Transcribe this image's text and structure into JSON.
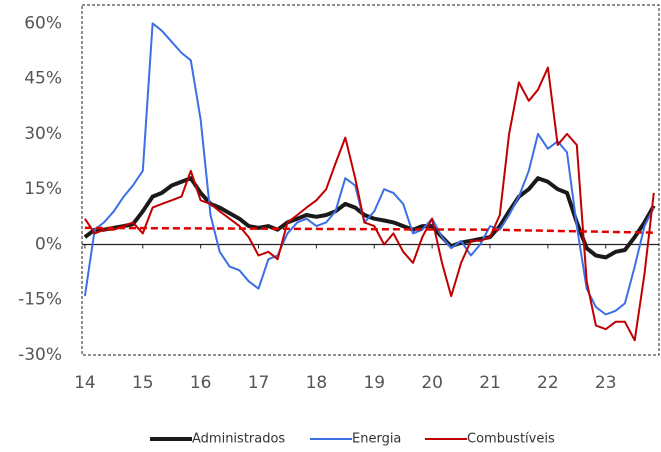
{
  "chart_data": {
    "type": "line",
    "x": [
      14,
      14.17,
      14.33,
      14.5,
      14.67,
      14.83,
      15,
      15.17,
      15.33,
      15.5,
      15.67,
      15.83,
      16,
      16.17,
      16.33,
      16.5,
      16.67,
      16.83,
      17,
      17.17,
      17.33,
      17.5,
      17.67,
      17.83,
      18,
      18.17,
      18.33,
      18.5,
      18.67,
      18.83,
      19,
      19.17,
      19.33,
      19.5,
      19.67,
      19.83,
      20,
      20.17,
      20.33,
      20.5,
      20.67,
      20.83,
      21,
      21.17,
      21.33,
      21.5,
      21.67,
      21.83,
      22,
      22.17,
      22.33,
      22.5,
      22.67,
      22.83,
      23,
      23.17,
      23.33,
      23.5,
      23.67,
      23.83
    ],
    "series": [
      {
        "name": "Administrados",
        "color": "#1a1a1a",
        "width": 4,
        "values": [
          2,
          4,
          4,
          4.5,
          5,
          5.5,
          9,
          13,
          14,
          16,
          17,
          18,
          14,
          11,
          10,
          8.5,
          7,
          5,
          4.5,
          5,
          4,
          6,
          7,
          8,
          7.5,
          8,
          9,
          11,
          10,
          8,
          7,
          6.5,
          6,
          5,
          4,
          5,
          5,
          2,
          -0.5,
          0.5,
          1,
          1.5,
          2,
          5,
          9,
          13,
          15,
          18,
          17,
          15,
          14,
          6,
          -1,
          -3,
          -3.5,
          -2,
          -1.5,
          2,
          6,
          10.5
        ]
      },
      {
        "name": "Energia",
        "color": "#3c6fe6",
        "width": 2,
        "values": [
          -14,
          4,
          6,
          9,
          13,
          16,
          20,
          60,
          58,
          55,
          52,
          50,
          34,
          8,
          -2,
          -6,
          -7,
          -10,
          -12,
          -4,
          -3,
          3,
          6,
          7,
          5,
          6,
          9,
          18,
          16,
          6,
          9,
          15,
          14,
          11,
          3,
          4,
          7,
          2,
          -1,
          1,
          -3,
          0,
          5,
          4,
          8,
          13,
          20,
          30,
          26,
          28,
          25,
          5,
          -12,
          -17,
          -19,
          -18,
          -16,
          -6,
          5,
          10
        ]
      },
      {
        "name": "Combustíveis",
        "color": "#c00000",
        "width": 2,
        "values": [
          7,
          3,
          4,
          4,
          5,
          6,
          3,
          10,
          11,
          12,
          13,
          20,
          12,
          11,
          9,
          7,
          5,
          2,
          -3,
          -2,
          -4,
          6,
          8,
          10,
          12,
          15,
          22,
          29,
          18,
          6,
          5,
          0,
          3,
          -2,
          -5,
          2,
          7,
          -5,
          -14,
          -5,
          1,
          1,
          2,
          8,
          30,
          44,
          39,
          42,
          48,
          27,
          30,
          27,
          -10,
          -22,
          -23,
          -21,
          -21,
          -26,
          -8,
          14
        ]
      },
      {
        "color": "#e00000",
        "width": 2.5,
        "dash": true,
        "x": [
          14,
          21,
          23.83
        ],
        "values": [
          4.5,
          4,
          3.2
        ]
      }
    ],
    "xlim": [
      13.95,
      23.92
    ],
    "xticks": [
      14,
      15,
      16,
      17,
      18,
      19,
      20,
      21,
      22,
      23
    ],
    "ylim": [
      -30,
      65
    ],
    "yticks": [
      {
        "value": -30,
        "label": "-30%"
      },
      {
        "value": -15,
        "label": "-15%"
      },
      {
        "value": 0,
        "label": "0%"
      },
      {
        "value": 15,
        "label": "15%"
      },
      {
        "value": 30,
        "label": "30%"
      },
      {
        "value": 45,
        "label": "45%"
      },
      {
        "value": 60,
        "label": "60%"
      }
    ],
    "legend": "bottom"
  }
}
